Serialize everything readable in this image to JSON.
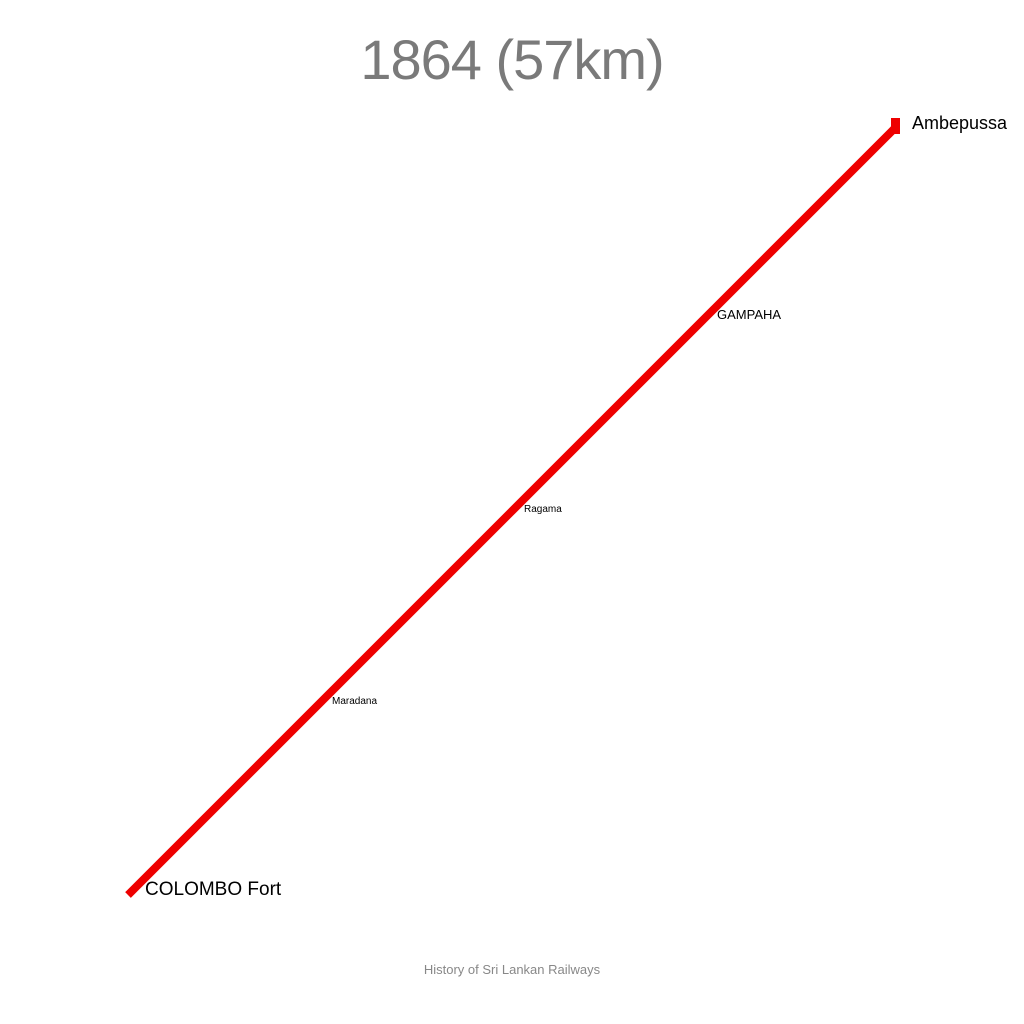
{
  "title": "1864 (57km)",
  "footer": "History of Sri Lankan Railways",
  "line": {
    "color": "#ee0000"
  },
  "stations": {
    "start": {
      "name": "COLOMBO Fort"
    },
    "maradana": {
      "name": "Maradana"
    },
    "ragama": {
      "name": "Ragama"
    },
    "gampaha": {
      "name": "GAMPAHA"
    },
    "end": {
      "name": "Ambepussa"
    }
  }
}
